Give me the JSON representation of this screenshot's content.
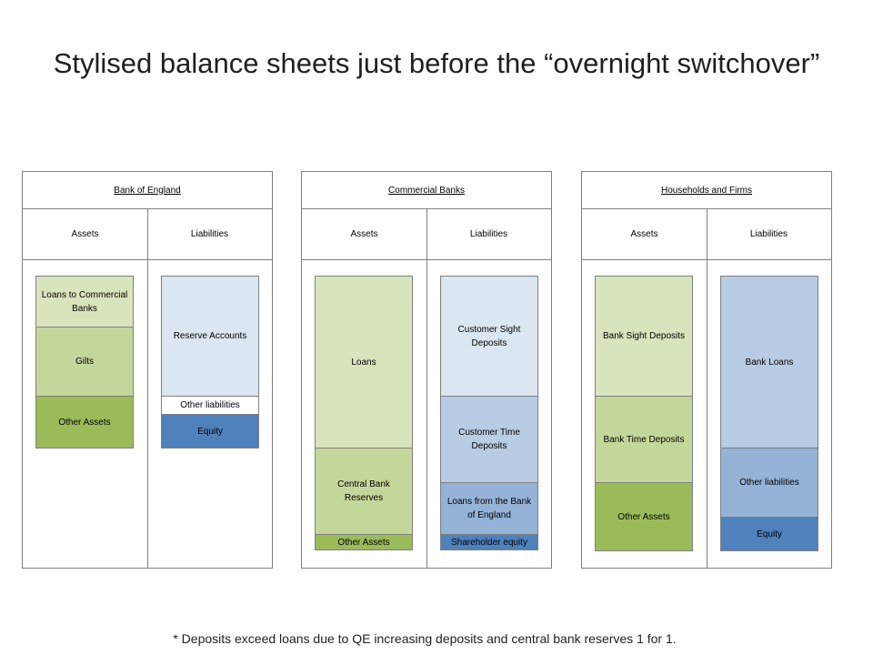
{
  "title": "Stylised balance sheets just before the “overnight switchover”",
  "columns": {
    "assets": "Assets",
    "liabilities": "Liabilities"
  },
  "sheets": [
    {
      "name": "Bank of England",
      "assets": [
        "Loans to Commercial Banks",
        "Gilts",
        "Other Assets"
      ],
      "liabilities": [
        "Reserve Accounts",
        "Other liabilities",
        "Equity"
      ]
    },
    {
      "name": "Commercial Banks",
      "assets": [
        "Loans",
        "Central Bank Reserves",
        "Other Assets"
      ],
      "liabilities": [
        "Customer Sight Deposits",
        "Customer Time Deposits",
        "Loans from the Bank of England",
        "Shareholder equity"
      ]
    },
    {
      "name": "Households and Firms",
      "assets": [
        "Bank Sight Deposits",
        "Bank Time Deposits",
        "Other Assets"
      ],
      "liabilities": [
        "Bank Loans",
        "Other liabilities",
        "Equity"
      ]
    }
  ],
  "colors": {
    "asset_light": "#d8e4bc",
    "asset_mid": "#c4d79b",
    "asset_dark": "#9bbb59",
    "liab_lightest": "#dce6f1",
    "liab_light": "#b8cce4",
    "liab_mid": "#95b3d7",
    "liab_dark": "#4f81bd"
  },
  "footnote": "* Deposits exceed loans due to QE increasing deposits and central bank reserves 1 for 1."
}
